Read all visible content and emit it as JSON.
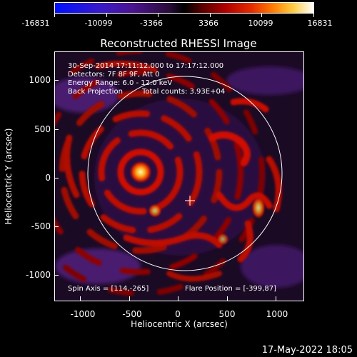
{
  "colorbar": {
    "labels": [
      "-16831",
      "-10099",
      "-3366",
      "3366",
      "10099",
      "16831"
    ]
  },
  "title": "Reconstructed RHESSI Image",
  "info": {
    "time_range": "30-Sep-2014 17:11:12.000 to 17:17:12.000",
    "detectors": "Detectors: 7F 8F 9F, Att 0",
    "energy": "Energy Range: 6.0 - 12.0 keV",
    "method": "Back Projection",
    "total_counts": "Total counts: 3.93E+04",
    "spin_axis": "Spin Axis = [114,-265]",
    "flare_position": "Flare Position = [-399,87]"
  },
  "axes": {
    "xlabel": "Heliocentric X (arcsec)",
    "ylabel": "Heliocentric Y (arcsec)",
    "xticks": [
      "-1000",
      "-500",
      "0",
      "500",
      "1000"
    ],
    "yticks": [
      "1000",
      "500",
      "0",
      "-500",
      "-1000"
    ]
  },
  "footer": {
    "timestamp": "17-May-2022 18:05"
  }
}
